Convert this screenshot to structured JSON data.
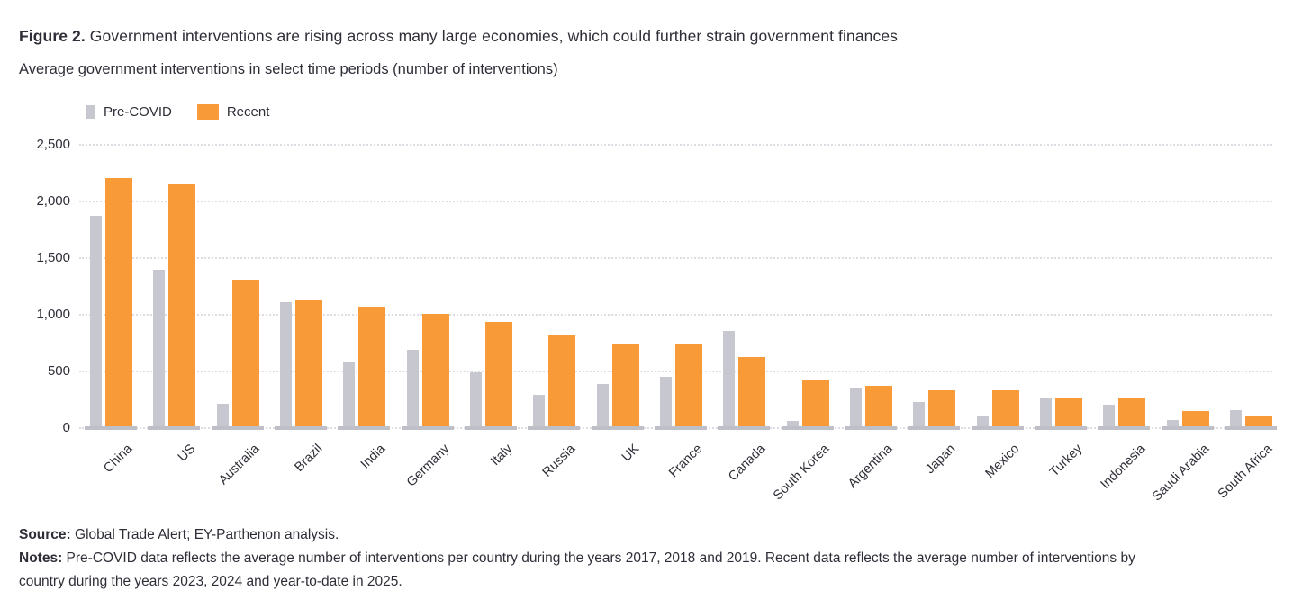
{
  "header": {
    "title_prefix": "Figure 2.",
    "title_rest": " Government interventions are rising across many large economies, which could further strain government finances",
    "subtitle": "Average government interventions in select time periods (number of interventions)"
  },
  "chart_data": {
    "type": "bar",
    "title": "Average government interventions in select time periods (number of interventions)",
    "categories": [
      "China",
      "US",
      "Australia",
      "Brazil",
      "India",
      "Germany",
      "Italy",
      "Russia",
      "UK",
      "France",
      "Canada",
      "South Korea",
      "Argentina",
      "Japan",
      "Mexico",
      "Turkey",
      "Indonesia",
      "Saudi Arabia",
      "South Africa"
    ],
    "series": [
      {
        "name": "Pre-COVID",
        "color": "#c7c7cf",
        "values": [
          1875,
          1395,
          215,
          1115,
          590,
          690,
          490,
          290,
          385,
          450,
          855,
          60,
          360,
          230,
          100,
          270,
          205,
          70,
          155
        ]
      },
      {
        "name": "Recent",
        "color": "#f89a38",
        "values": [
          2210,
          2150,
          1310,
          1135,
          1070,
          1005,
          935,
          820,
          740,
          740,
          625,
          420,
          370,
          335,
          330,
          265,
          260,
          150,
          110
        ]
      }
    ],
    "ylim": [
      0,
      2500
    ],
    "yticks": [
      0,
      500,
      1000,
      1500,
      2000,
      2500
    ],
    "ytick_labels": [
      "0",
      "500",
      "1,000",
      "1,500",
      "2,000",
      "2,500"
    ],
    "xlabel": "",
    "ylabel": "",
    "grid": "horizontal-dotted",
    "legend_position": "top-left"
  },
  "footer": {
    "source_label": "Source:",
    "source_text": " Global Trade Alert; EY-Parthenon analysis.",
    "notes_label": "Notes:",
    "notes_line1": " Pre-COVID data reflects the average number of interventions per country during the years 2017, 2018 and 2019. Recent data reflects the average number of interventions by",
    "notes_line2": "country during the years 2023, 2024 and year-to-date in 2025."
  },
  "colors": {
    "text": "#2e2e38",
    "pre_covid": "#c7c7cf",
    "recent": "#f89a38",
    "gridline": "#dcdce2",
    "baseline": "#bfbfc8"
  }
}
